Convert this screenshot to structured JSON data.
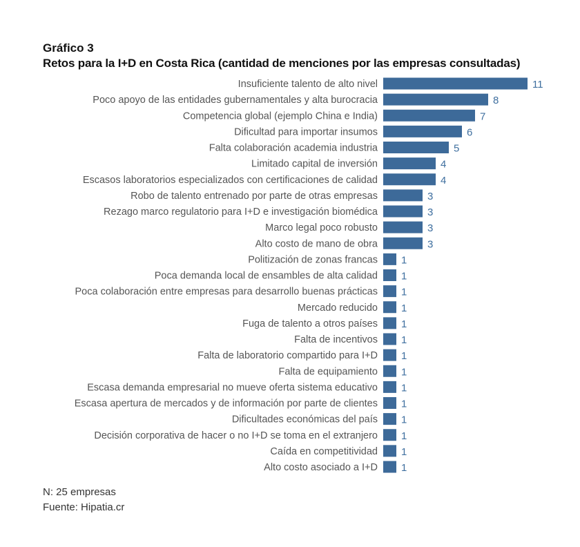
{
  "chart_data": {
    "type": "bar",
    "orientation": "horizontal",
    "title": "Gráfico 3",
    "subtitle": "Retos para la I+D en Costa Rica (cantidad de menciones por las empresas consultadas)",
    "categories": [
      "Insuficiente talento de alto nivel",
      "Poco apoyo de las entidades gubernamentales y alta burocracia",
      "Competencia global (ejemplo China e India)",
      "Dificultad para importar insumos",
      "Falta colaboración academia industria",
      "Limitado capital de inversión",
      "Escasos laboratorios especializados con certificaciones de calidad",
      "Robo de talento entrenado por parte de otras empresas",
      "Rezago marco regulatorio para I+D e investigación biomédica",
      "Marco legal poco robusto",
      "Alto costo de mano de obra",
      "Politización de zonas francas",
      "Poca demanda local de ensambles de alta calidad",
      "Poca colaboración entre empresas para desarrollo buenas prácticas",
      "Mercado reducido",
      "Fuga de talento a otros países",
      "Falta de incentivos",
      "Falta de laboratorio compartido para I+D",
      "Falta de equipamiento",
      "Escasa demanda empresarial no mueve oferta sistema educativo",
      "Escasa apertura de mercados y de información por parte de clientes",
      "Dificultades económicas del país",
      "Decisión corporativa de hacer o no I+D se toma en el extranjero",
      "Caída en competitividad",
      "Alto costo asociado a I+D"
    ],
    "values": [
      11,
      8,
      7,
      6,
      5,
      4,
      4,
      3,
      3,
      3,
      3,
      1,
      1,
      1,
      1,
      1,
      1,
      1,
      1,
      1,
      1,
      1,
      1,
      1,
      1
    ],
    "xlim": [
      0,
      11
    ],
    "grid": false,
    "data_labels": true,
    "colors": {
      "bar": "#3d6a99",
      "value_label": "#3f6f9f",
      "category_label": "#555555"
    }
  },
  "footnotes": {
    "n": "N: 25 empresas",
    "source": "Fuente: Hipatia.cr"
  }
}
